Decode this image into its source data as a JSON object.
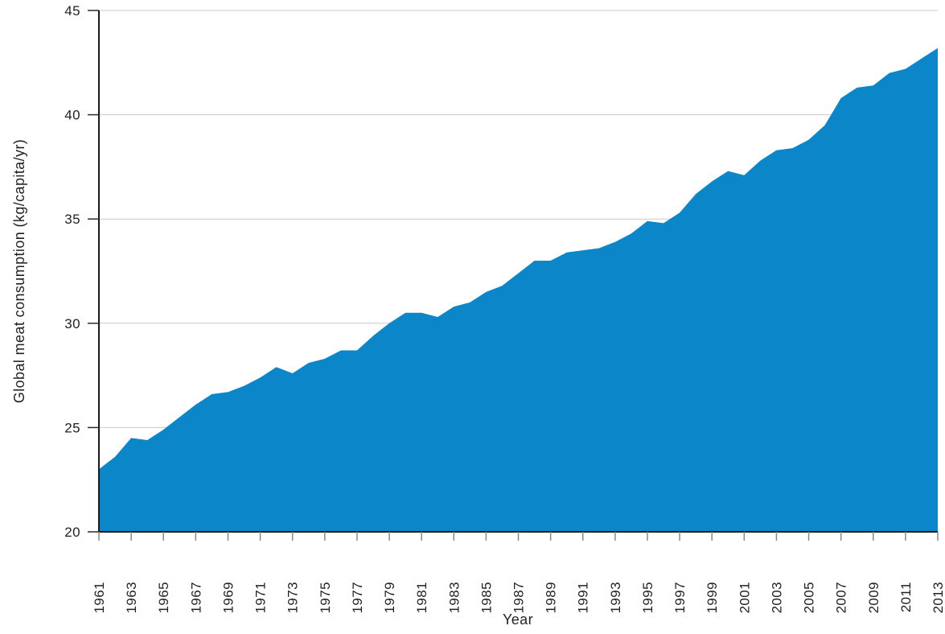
{
  "chart_data": {
    "type": "area",
    "title": "",
    "xlabel": "Year",
    "ylabel": "Global meat consumption (kg/capita/yr)",
    "x": [
      1961,
      1962,
      1963,
      1964,
      1965,
      1966,
      1967,
      1968,
      1969,
      1970,
      1971,
      1972,
      1973,
      1974,
      1975,
      1976,
      1977,
      1978,
      1979,
      1980,
      1981,
      1982,
      1983,
      1984,
      1985,
      1986,
      1987,
      1988,
      1989,
      1990,
      1991,
      1992,
      1993,
      1994,
      1995,
      1996,
      1997,
      1998,
      1999,
      2000,
      2001,
      2002,
      2003,
      2004,
      2005,
      2006,
      2007,
      2008,
      2009,
      2010,
      2011,
      2012,
      2013
    ],
    "values": [
      23.0,
      23.6,
      24.5,
      24.4,
      24.9,
      25.5,
      26.1,
      26.6,
      26.7,
      27.0,
      27.4,
      27.9,
      27.6,
      28.1,
      28.3,
      28.7,
      28.7,
      29.4,
      30.0,
      30.5,
      30.5,
      30.3,
      30.8,
      31.0,
      31.5,
      31.8,
      32.4,
      33.0,
      33.0,
      33.4,
      33.5,
      33.6,
      33.9,
      34.3,
      34.9,
      34.8,
      35.3,
      36.2,
      36.8,
      37.3,
      37.1,
      37.8,
      38.3,
      38.4,
      38.8,
      39.5,
      40.8,
      41.3,
      41.4,
      42.0,
      42.2,
      42.7,
      43.2
    ],
    "xlim": [
      1961,
      2013
    ],
    "ylim": [
      20,
      45
    ],
    "yticks": [
      20,
      25,
      30,
      35,
      40,
      45
    ],
    "xtick_labels": [
      "1961",
      "1963",
      "1965",
      "1967",
      "1969",
      "1971",
      "1973",
      "1975",
      "1977",
      "1979",
      "1981",
      "1983",
      "1985",
      "1987",
      "1989",
      "1991",
      "1993",
      "1995",
      "1997",
      "1999",
      "2001",
      "2003",
      "2005",
      "2007",
      "2009",
      "2011",
      "2013"
    ],
    "grid": "horizontal-only",
    "legend": "none",
    "colors": {
      "area_fill": "#0b86c8",
      "grid_line": "#c9c9c9",
      "axis_line": "#1a1a1a",
      "x_tick": "#8a8a8a",
      "y_tick": "#2b2b2b",
      "text": "#231f20",
      "background": "#ffffff"
    }
  }
}
